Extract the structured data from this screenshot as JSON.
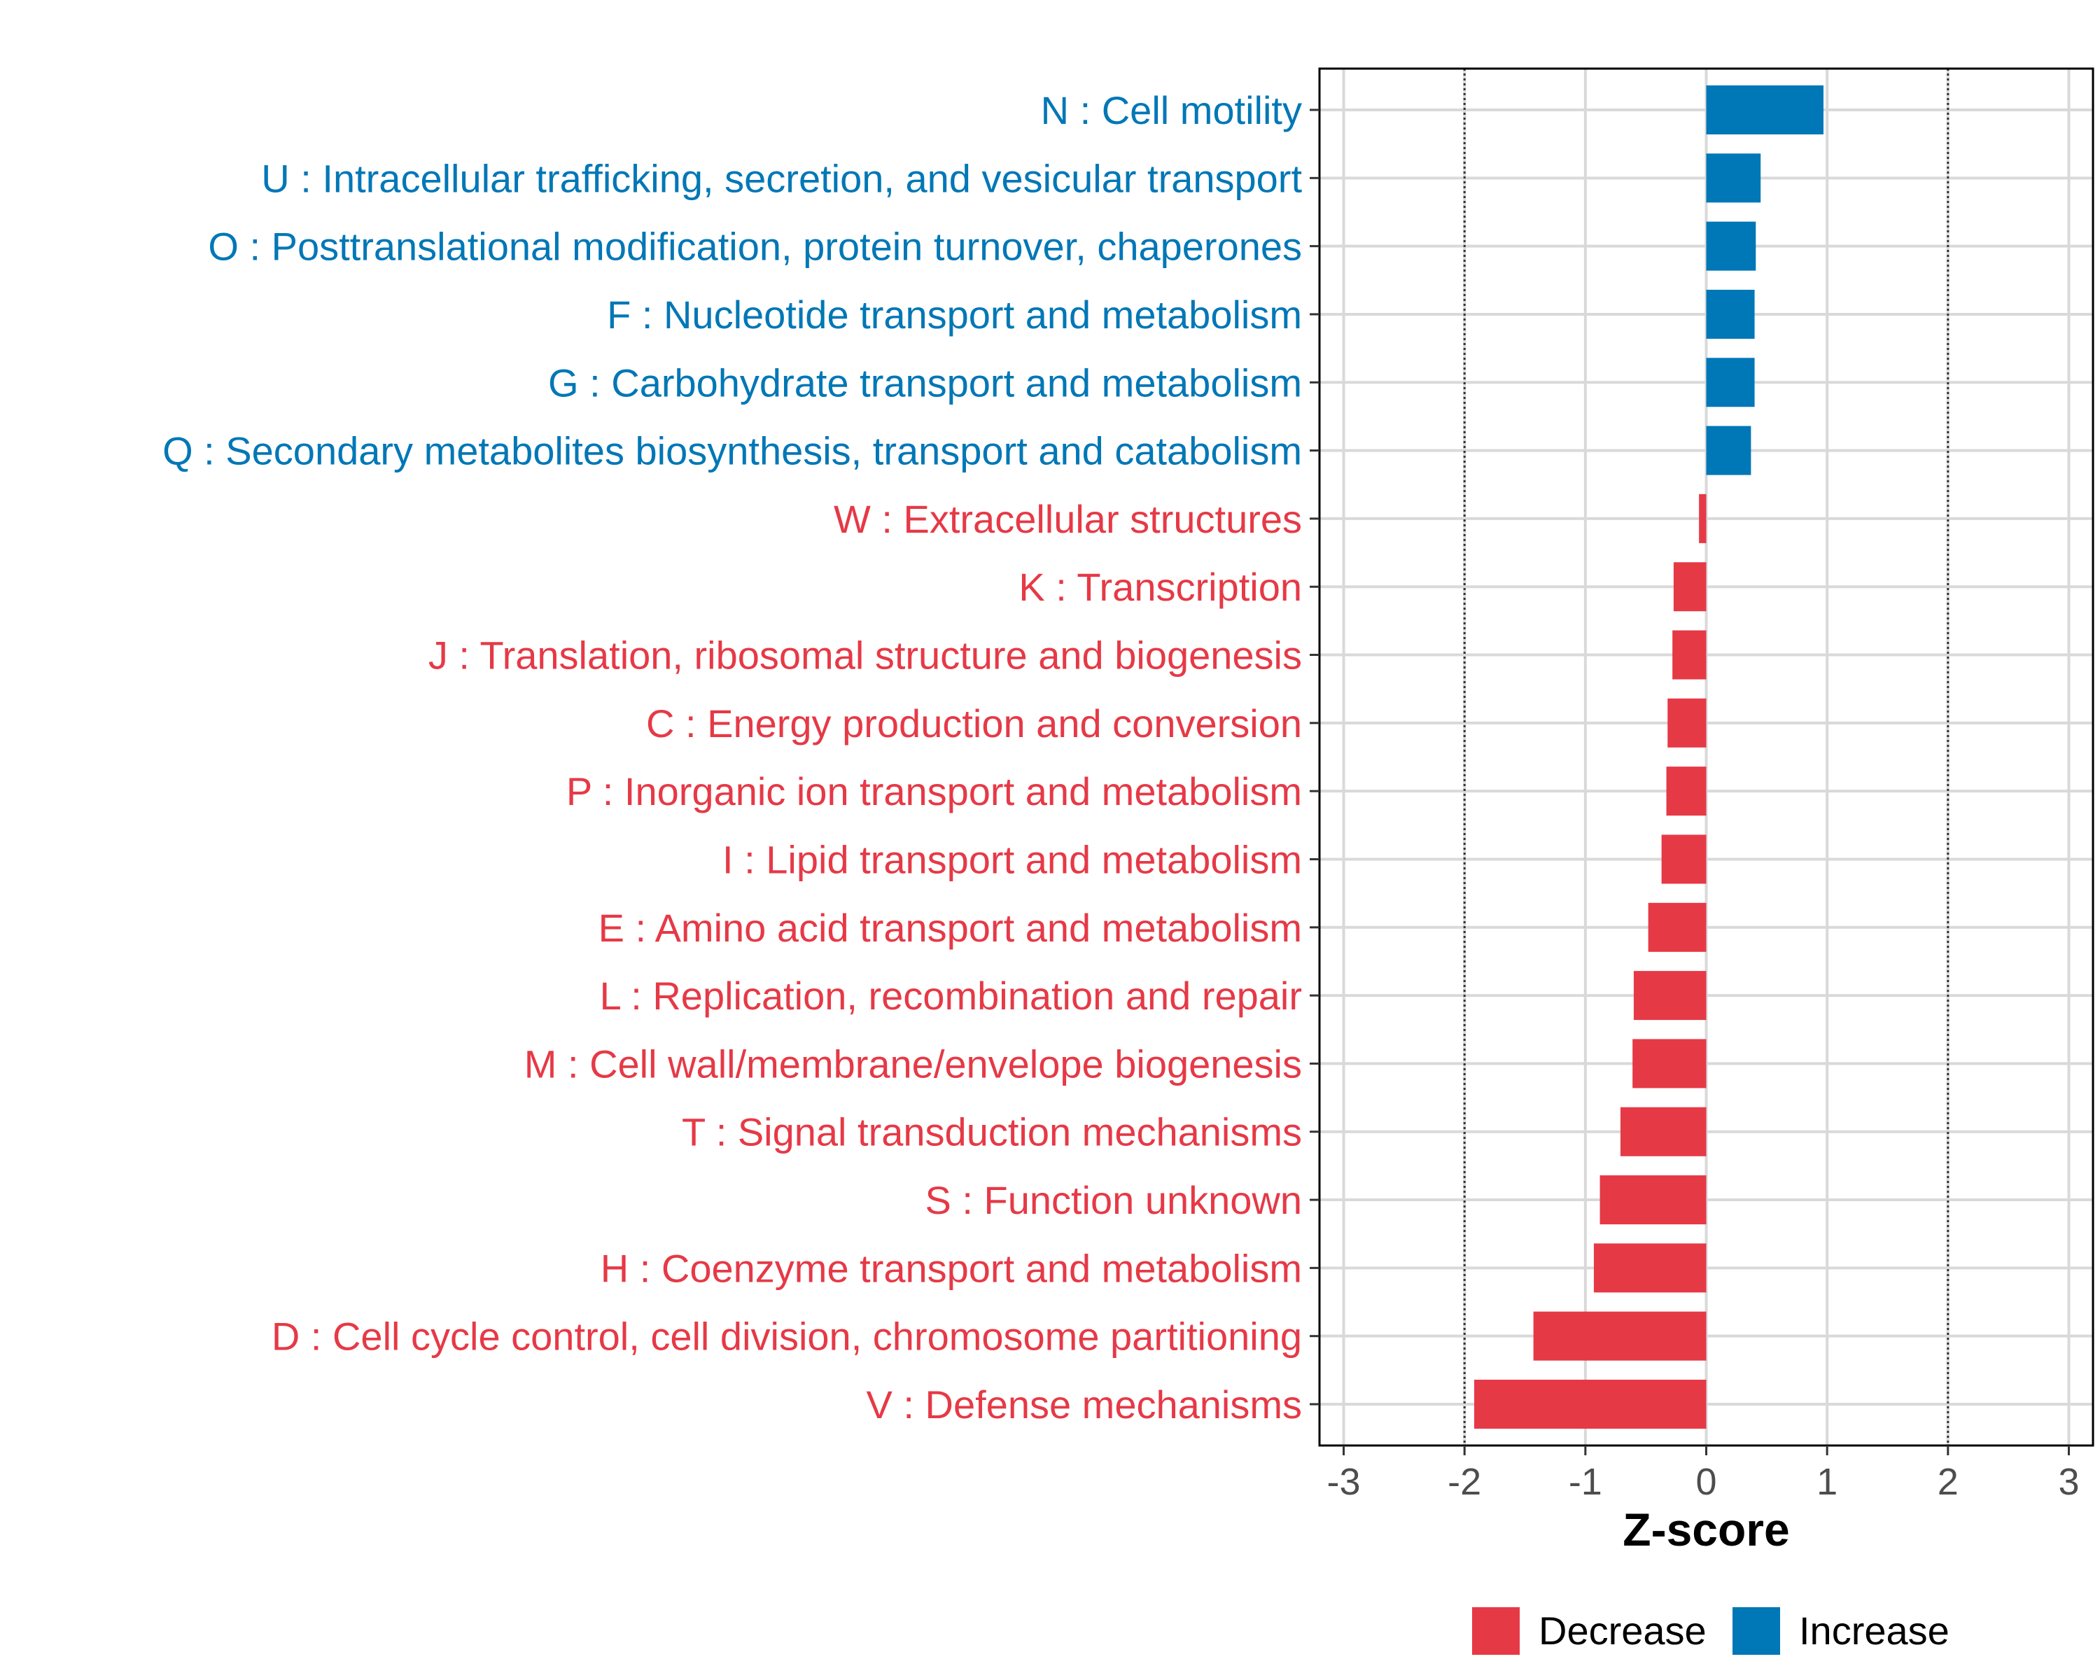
{
  "chart_data": {
    "type": "bar",
    "orientation": "horizontal",
    "title": "",
    "xlabel": "Z-score",
    "ylabel": "",
    "xlim": [
      -3.2,
      3.2
    ],
    "x_ticks": [
      -3,
      -2,
      -1,
      0,
      1,
      2,
      3
    ],
    "x_tick_labels": [
      "-3",
      "-2",
      "-1",
      "0",
      "1",
      "2",
      "3"
    ],
    "reference_lines": [
      -2,
      2
    ],
    "grid": true,
    "colors": {
      "Decrease": "#e63946",
      "Increase": "#0077b6"
    },
    "legend": {
      "position": "bottom",
      "entries": [
        {
          "name": "Decrease",
          "color": "#e63946"
        },
        {
          "name": "Increase",
          "color": "#0077b6"
        }
      ]
    },
    "categories": [
      "N : Cell motility",
      "U : Intracellular trafficking, secretion, and vesicular transport",
      "O : Posttranslational modification, protein turnover, chaperones",
      "F : Nucleotide transport and metabolism",
      "G : Carbohydrate transport and metabolism",
      "Q : Secondary metabolites biosynthesis, transport and catabolism",
      "W : Extracellular structures",
      "K : Transcription",
      "J : Translation, ribosomal structure and biogenesis",
      "C : Energy production and conversion",
      "P : Inorganic ion transport and metabolism",
      "I : Lipid transport and metabolism",
      "E : Amino acid transport and metabolism",
      "L : Replication, recombination and repair",
      "M : Cell wall/membrane/envelope biogenesis",
      "T : Signal transduction mechanisms",
      "S : Function unknown",
      "H : Coenzyme transport and metabolism",
      "D : Cell cycle control, cell division, chromosome partitioning",
      "V : Defense mechanisms"
    ],
    "values": [
      0.97,
      0.45,
      0.41,
      0.4,
      0.4,
      0.37,
      -0.06,
      -0.27,
      -0.28,
      -0.32,
      -0.33,
      -0.37,
      -0.48,
      -0.6,
      -0.61,
      -0.71,
      -0.88,
      -0.93,
      -1.43,
      -1.92
    ],
    "groups": [
      "Increase",
      "Increase",
      "Increase",
      "Increase",
      "Increase",
      "Increase",
      "Decrease",
      "Decrease",
      "Decrease",
      "Decrease",
      "Decrease",
      "Decrease",
      "Decrease",
      "Decrease",
      "Decrease",
      "Decrease",
      "Decrease",
      "Decrease",
      "Decrease",
      "Decrease"
    ]
  }
}
